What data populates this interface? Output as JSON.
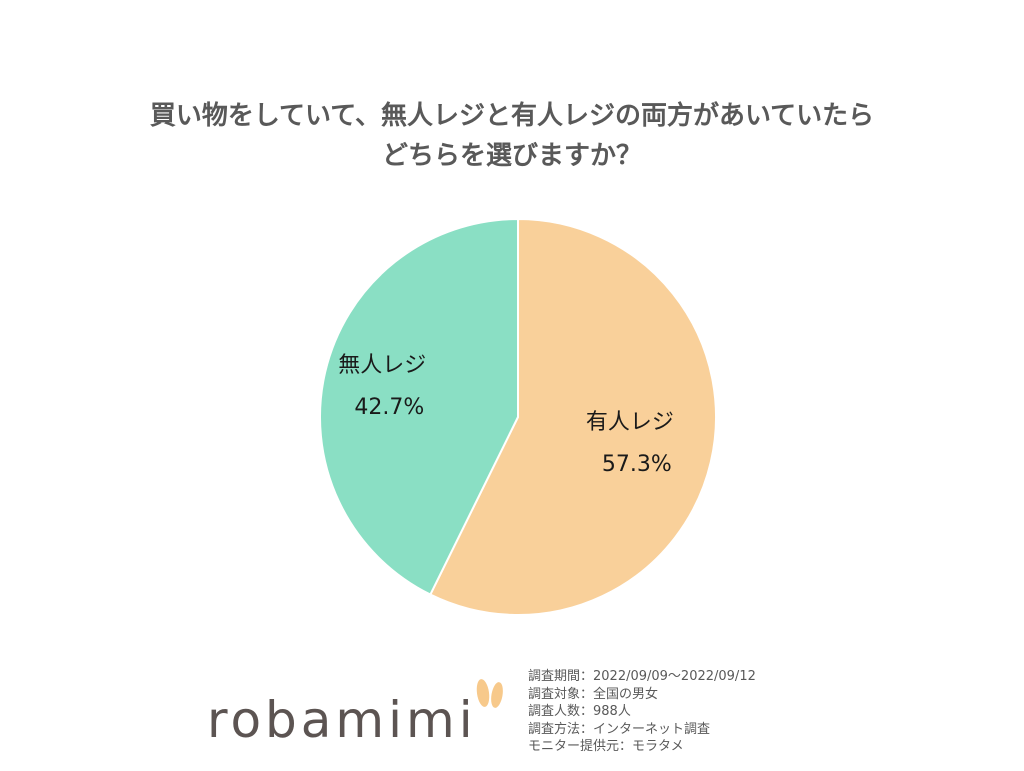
{
  "colors": {
    "title": "#595959",
    "no_staff": "#8adfc4",
    "staffed": "#f9d09a",
    "logo": "#5c5452",
    "logo_ears": "#f7c98b"
  },
  "title": {
    "line1": "買い物をしていて、無人レジと有人レジの両方があいていたら",
    "line2": "どちらを選びますか？"
  },
  "chart_data": {
    "type": "pie",
    "title": "買い物をしていて、無人レジと有人レジの両方があいていたら どちらを選びますか？",
    "slices": [
      {
        "label": "有人レジ",
        "value": 57.3,
        "value_label": "57.3%"
      },
      {
        "label": "無人レジ",
        "value": 42.7,
        "value_label": "42.7%"
      }
    ],
    "start_angle": "12 o'clock",
    "direction": "clockwise",
    "legend": "none"
  },
  "logo": {
    "text": "robamimi"
  },
  "info": [
    "調査期間：2022/09/09～2022/09/12",
    "調査対象：全国の男女",
    "調査人数：988人",
    "調査方法：インターネット調査",
    "モニター提供元：モラタメ"
  ]
}
